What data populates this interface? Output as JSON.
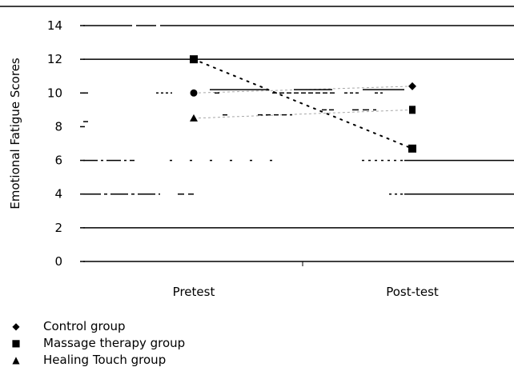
{
  "chart_data": {
    "type": "line",
    "categories": [
      "Pretest",
      "Post-test"
    ],
    "ylabel": "Emotional Fatigue Scores",
    "xlabel": "",
    "title": "",
    "ylim": [
      0,
      14
    ],
    "yticks": [
      0,
      2,
      4,
      6,
      8,
      10,
      12,
      14
    ],
    "grid": true,
    "legend_position": "bottom-left",
    "series": [
      {
        "name": "Control group",
        "marker": "diamond",
        "values": [
          10.0,
          10.4
        ]
      },
      {
        "name": "Massage therapy group",
        "marker": "square",
        "values": [
          12.0,
          6.7
        ]
      },
      {
        "name": "Healing Touch group",
        "marker": "triangle",
        "values": [
          8.5,
          9.0
        ]
      }
    ],
    "legend": [
      {
        "symbol": "◆",
        "label": "Control group"
      },
      {
        "symbol": "■",
        "label": "Massage therapy group"
      },
      {
        "symbol": "▲",
        "label": "Healing Touch group"
      }
    ]
  }
}
